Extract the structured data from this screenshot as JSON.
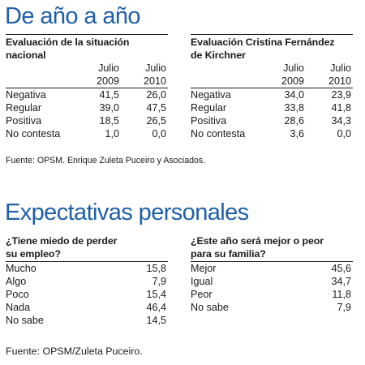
{
  "section1": {
    "title": "De año a año",
    "left": {
      "title": "Evaluación de la situación nacional",
      "title_lines": [
        "Evaluación de la situación",
        "nacional"
      ],
      "header_top": [
        "Julio",
        "Julio"
      ],
      "header_bottom": [
        "2009",
        "2010"
      ],
      "rows": [
        {
          "label": "Negativa",
          "v1": "41,5",
          "v2": "26,0"
        },
        {
          "label": "Regular",
          "v1": "39,0",
          "v2": "47,5"
        },
        {
          "label": "Positiva",
          "v1": "18,5",
          "v2": "26,5"
        },
        {
          "label": "No contesta",
          "v1": "1,0",
          "v2": "0,0"
        }
      ]
    },
    "right": {
      "title": "Evaluación Cristina Fernández de Kirchner",
      "title_lines": [
        "Evaluación Cristina Fernández",
        "de Kirchner"
      ],
      "header_top": [
        "Julio",
        "Julio"
      ],
      "header_bottom": [
        "2009",
        "2010"
      ],
      "rows": [
        {
          "label": "Negativa",
          "v1": "34,0",
          "v2": "23,9"
        },
        {
          "label": "Regular",
          "v1": "33,8",
          "v2": "41,8"
        },
        {
          "label": "Positiva",
          "v1": "28,6",
          "v2": "34,3"
        },
        {
          "label": "No contesta",
          "v1": "3,6",
          "v2": "0,0"
        }
      ]
    },
    "source": "Fuente: OPSM. Enrique Zuleta Puceiro y Asociados."
  },
  "section2": {
    "title": "Expectativas personales",
    "left": {
      "title_lines": [
        "¿Tiene miedo de perder",
        "su empleo?"
      ],
      "rows": [
        {
          "label": "Mucho",
          "value": "15,8"
        },
        {
          "label": "Algo",
          "value": "7,9"
        },
        {
          "label": "Poco",
          "value": "15,4"
        },
        {
          "label": "Nada",
          "value": "46,4"
        },
        {
          "label": "No sabe",
          "value": "14,5"
        }
      ]
    },
    "right": {
      "title_lines": [
        "¿Este año será mejor o peor",
        "para su familia?"
      ],
      "rows": [
        {
          "label": "Mejor",
          "value": "45,6"
        },
        {
          "label": "Igual",
          "value": "34,7"
        },
        {
          "label": "Peor",
          "value": "11,8"
        },
        {
          "label": "No sabe",
          "value": "7,9"
        }
      ]
    },
    "source": "Fuente: OPSM/Zuleta Puceiro."
  },
  "colors": {
    "heading": "#1f5fa8",
    "text": "#1a1a1a",
    "rule": "#1a1a1a"
  }
}
